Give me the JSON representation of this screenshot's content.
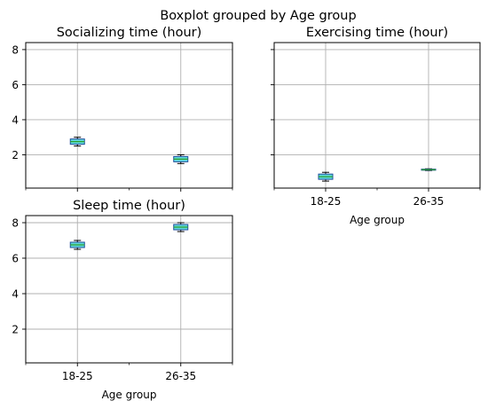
{
  "suptitle": "Boxplot grouped by Age group",
  "style": {
    "box_fill": "#5fd9dc",
    "box_edge": "#1f4e9c",
    "median_color": "#2ca02c",
    "whisker_color": "#000000",
    "grid_color": "#b0b0b0"
  },
  "chart_data": [
    {
      "type": "boxplot",
      "title": "Socializing time (hour)",
      "categories": [
        "18-25",
        "26-35"
      ],
      "show_xticklabels": false,
      "show_yticklabels": true,
      "xlabel": "",
      "ylim": [
        0.1,
        8.4
      ],
      "yticks": [
        2,
        4,
        6,
        8
      ],
      "grid": true,
      "boxes": [
        {
          "whislo": 2.5,
          "q1": 2.6,
          "med": 2.75,
          "q3": 2.9,
          "whishi": 3.0
        },
        {
          "whislo": 1.5,
          "q1": 1.6,
          "med": 1.75,
          "q3": 1.9,
          "whishi": 2.0
        }
      ]
    },
    {
      "type": "boxplot",
      "title": "Exercising time (hour)",
      "categories": [
        "18-25",
        "26-35"
      ],
      "show_xticklabels": true,
      "show_yticklabels": false,
      "xlabel": "Age group",
      "ylim": [
        0.1,
        8.4
      ],
      "yticks": [
        2,
        4,
        6,
        8
      ],
      "grid": true,
      "boxes": [
        {
          "whislo": 0.5,
          "q1": 0.6,
          "med": 0.75,
          "q3": 0.9,
          "whishi": 1.0
        },
        {
          "whislo": 1.1,
          "q1": 1.12,
          "med": 1.15,
          "q3": 1.18,
          "whishi": 1.2
        }
      ]
    },
    {
      "type": "boxplot",
      "title": "Sleep time (hour)",
      "categories": [
        "18-25",
        "26-35"
      ],
      "show_xticklabels": true,
      "show_yticklabels": true,
      "xlabel": "Age group",
      "ylim": [
        0.1,
        8.4
      ],
      "yticks": [
        2,
        4,
        6,
        8
      ],
      "grid": true,
      "boxes": [
        {
          "whislo": 6.5,
          "q1": 6.6,
          "med": 6.75,
          "q3": 6.9,
          "whishi": 7.0
        },
        {
          "whislo": 7.5,
          "q1": 7.6,
          "med": 7.75,
          "q3": 7.9,
          "whishi": 8.0
        }
      ]
    }
  ]
}
